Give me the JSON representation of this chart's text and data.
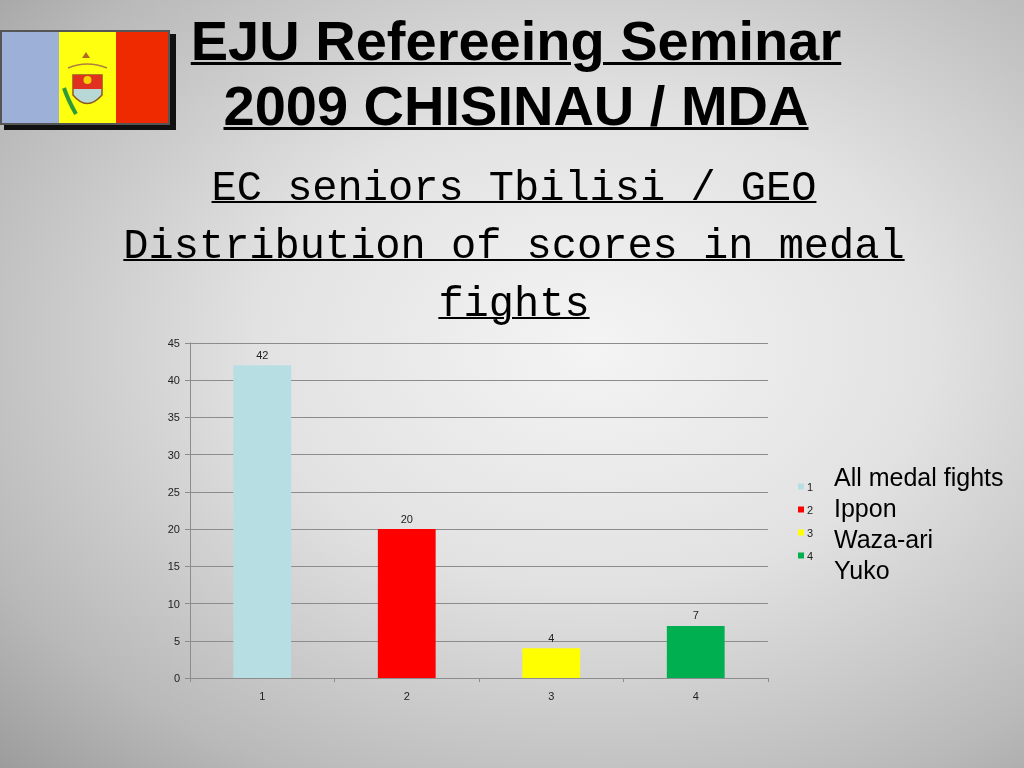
{
  "chart_data": {
    "type": "bar",
    "title": "EJU Refereeing Seminar 2009 CHISINAU / MDA",
    "subtitle": "EC seniors Tbilisi / GEO Distribution of scores in medal fights",
    "categories": [
      "1",
      "2",
      "3",
      "4"
    ],
    "stacked": true,
    "series": [
      {
        "name": "1",
        "color": "#b7dfe3",
        "values": [
          42,
          null,
          null,
          null
        ]
      },
      {
        "name": "2",
        "color": "#ff0000",
        "values": [
          null,
          20,
          null,
          null
        ]
      },
      {
        "name": "3",
        "color": "#ffff00",
        "values": [
          null,
          null,
          4,
          null
        ]
      },
      {
        "name": "4",
        "color": "#00b050",
        "values": [
          null,
          null,
          null,
          7
        ]
      }
    ],
    "ylim": [
      0,
      45
    ],
    "yticks": [
      0,
      5,
      10,
      15,
      20,
      25,
      30,
      35,
      40,
      45
    ],
    "grid": "y",
    "legend": "right",
    "data_labels": true,
    "annotations": [
      "All medal fights",
      "Ippon",
      "Waza-ari",
      "Yuko"
    ]
  }
}
